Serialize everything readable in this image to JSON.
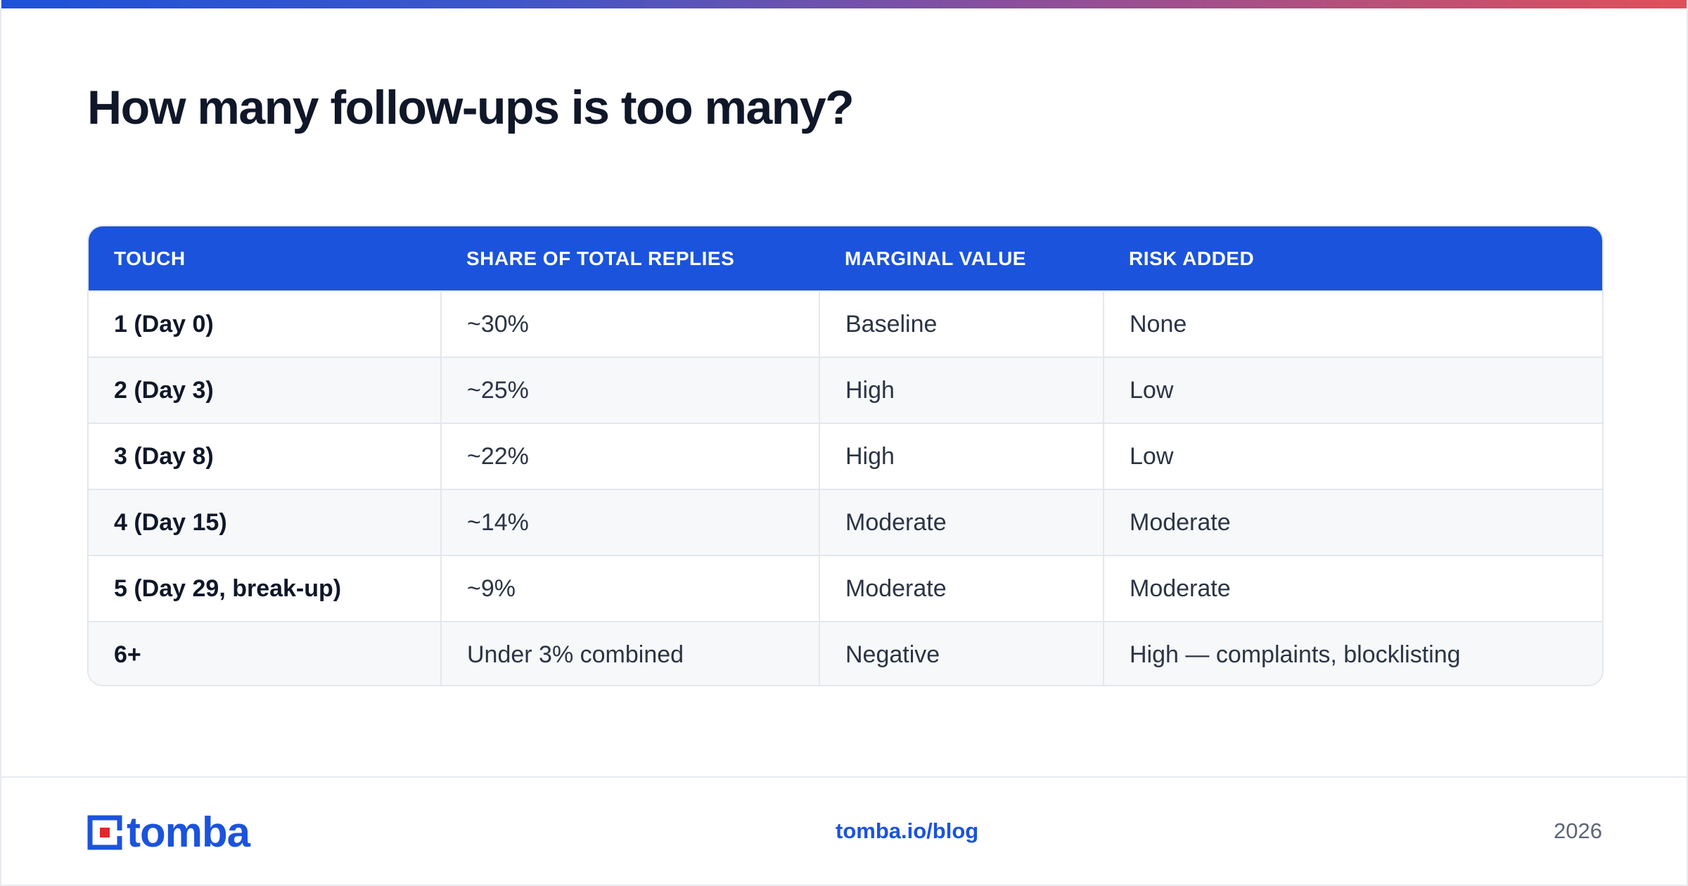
{
  "title": "How many follow-ups is too many?",
  "table": {
    "headers": [
      "TOUCH",
      "SHARE OF TOTAL REPLIES",
      "MARGINAL VALUE",
      "RISK ADDED"
    ],
    "rows": [
      {
        "touch": "1 (Day 0)",
        "share": "~30%",
        "value": "Baseline",
        "risk": "None"
      },
      {
        "touch": "2 (Day 3)",
        "share": "~25%",
        "value": "High",
        "risk": "Low"
      },
      {
        "touch": "3 (Day 8)",
        "share": "~22%",
        "value": "High",
        "risk": "Low"
      },
      {
        "touch": "4 (Day 15)",
        "share": "~14%",
        "value": "Moderate",
        "risk": "Moderate"
      },
      {
        "touch": "5 (Day 29, break-up)",
        "share": "~9%",
        "value": "Moderate",
        "risk": "Moderate"
      },
      {
        "touch": "6+",
        "share": "Under 3% combined",
        "value": "Negative",
        "risk": "High — complaints, blocklisting"
      }
    ]
  },
  "footer": {
    "logo_text": "tomba",
    "link": "tomba.io/blog",
    "year": "2026"
  },
  "colors": {
    "accent": "#1b53dc",
    "logo_red": "#e3262e",
    "title": "#0f1729",
    "gradient_start": "#1d52d8",
    "gradient_end": "#e0505a"
  },
  "icons": {
    "logo_mark": "tomba-logo-mark-icon"
  }
}
